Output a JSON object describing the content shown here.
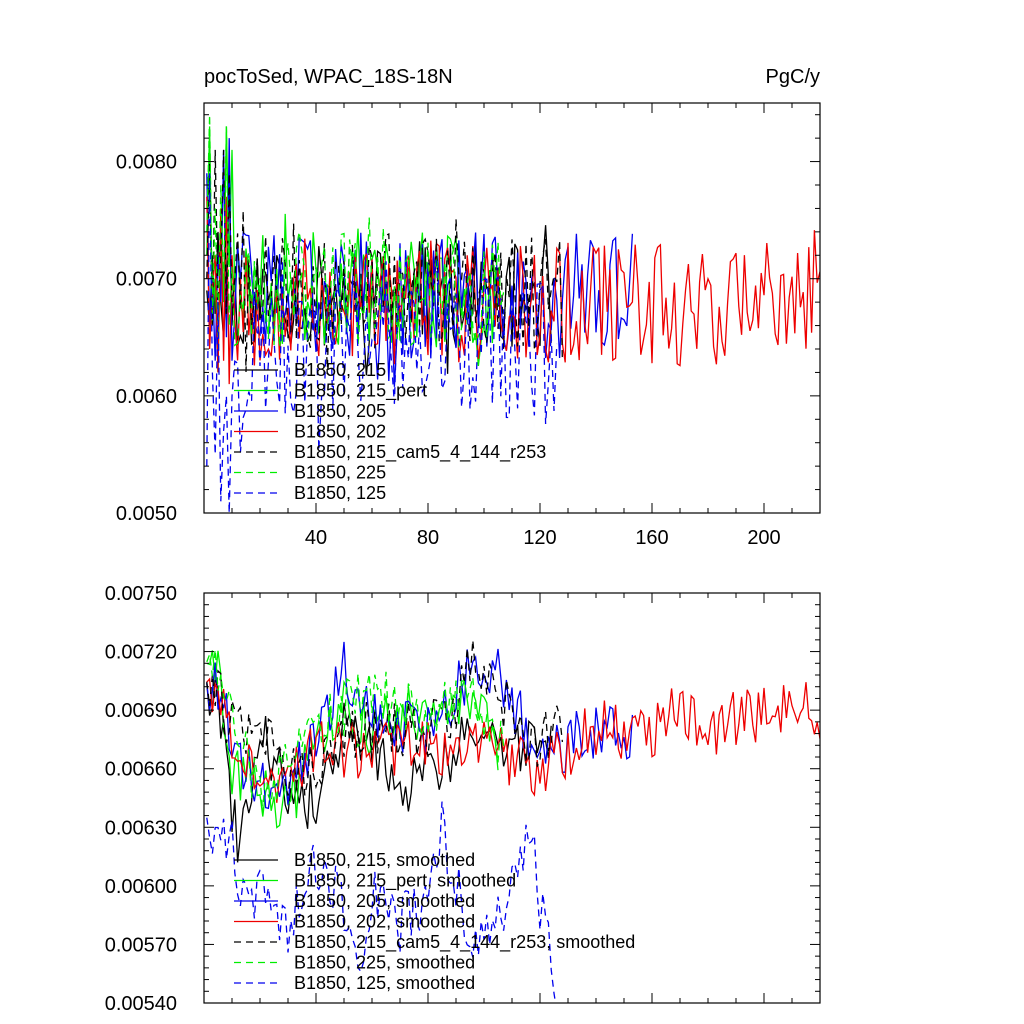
{
  "chart_data": [
    {
      "type": "line",
      "title_left": "pocToSed, WPAC_18S-18N",
      "title_right": "PgC/y",
      "xlabel": "",
      "ylabel": "",
      "xlim": [
        0,
        220
      ],
      "ylim": [
        0.005,
        0.0085
      ],
      "xticks": [
        40,
        80,
        120,
        160,
        200
      ],
      "yticks": [
        0.005,
        0.006,
        0.007,
        0.008
      ],
      "ytick_labels": [
        "0.0050",
        "0.0060",
        "0.0070",
        "0.0080"
      ],
      "legend_placement": "lower-left",
      "series": [
        {
          "name": "B1850, 215",
          "color": "#000000",
          "dash": "solid",
          "length": 124,
          "mean": 0.00685,
          "amp": 0.00045,
          "seed": 11,
          "values_sample": [
            0.0069,
            0.0066,
            0.0072,
            0.0067,
            0.0074,
            0.0068,
            0.0065,
            0.007,
            0.0078,
            0.0066
          ]
        },
        {
          "name": "B1850, 215_pert",
          "color": "#00ee00",
          "dash": "solid",
          "length": 105,
          "mean": 0.0069,
          "amp": 0.0005,
          "seed": 23,
          "values_sample": [
            0.0072,
            0.0083,
            0.0066,
            0.007,
            0.0062,
            0.0075,
            0.0068,
            0.0083,
            0.0071,
            0.0081
          ]
        },
        {
          "name": "B1850, 205",
          "color": "#0000ee",
          "dash": "solid",
          "length": 153,
          "mean": 0.00685,
          "amp": 0.00055,
          "seed": 37,
          "values_sample": [
            0.0079,
            0.0066,
            0.007,
            0.0063,
            0.0072,
            0.0068,
            0.0081,
            0.0065,
            0.0082,
            0.0063
          ]
        },
        {
          "name": "B1850, 202",
          "color": "#ee0000",
          "dash": "solid",
          "length": 220,
          "mean": 0.0068,
          "amp": 0.00055,
          "seed": 53,
          "values_sample": [
            0.0077,
            0.0064,
            0.0069,
            0.0072,
            0.0062,
            0.0076,
            0.0063,
            0.0077,
            0.0061,
            0.0072
          ]
        },
        {
          "name": "B1850, 215_cam5_4_144_r253",
          "color": "#000000",
          "dash": "dashed",
          "length": 128,
          "mean": 0.0069,
          "amp": 0.0005,
          "seed": 71,
          "values_sample": [
            0.007,
            0.008,
            0.0066,
            0.0081,
            0.0068,
            0.0072,
            0.0081,
            0.0067,
            0.0079,
            0.0068
          ]
        },
        {
          "name": "B1850, 225",
          "color": "#00ee00",
          "dash": "dashed",
          "length": 107,
          "mean": 0.0069,
          "amp": 0.0005,
          "seed": 89,
          "values_sample": [
            0.0074,
            0.0084,
            0.0067,
            0.0076,
            0.0065,
            0.0078,
            0.0069,
            0.0083,
            0.0066,
            0.0071
          ]
        },
        {
          "name": "B1850, 125",
          "color": "#0000ee",
          "dash": "dashed",
          "length": 126,
          "mean": 0.0064,
          "amp": 0.0006,
          "seed": 97,
          "values_sample": [
            0.0054,
            0.0079,
            0.0062,
            0.0055,
            0.0068,
            0.0051,
            0.0057,
            0.006,
            0.005,
            0.006
          ]
        }
      ]
    },
    {
      "type": "line",
      "title_left": "",
      "title_right": "",
      "xlabel": "",
      "ylabel": "",
      "xlim": [
        0,
        220
      ],
      "ylim": [
        0.0054,
        0.0075
      ],
      "xticks": [
        40,
        80,
        120,
        160,
        200
      ],
      "yticks": [
        0.0054,
        0.0057,
        0.006,
        0.0063,
        0.0066,
        0.0069,
        0.0072,
        0.0075
      ],
      "ytick_labels": [
        "0.00540",
        "0.00570",
        "0.00600",
        "0.00630",
        "0.00660",
        "0.00690",
        "0.00720",
        "0.00750"
      ],
      "legend_placement": "lower-left",
      "series": [
        {
          "name": "B1850, 215, smoothed",
          "color": "#000000",
          "dash": "solid",
          "length": 124,
          "points": [
            [
              5,
              0.007
            ],
            [
              10,
              0.0064
            ],
            [
              12,
              0.0062
            ],
            [
              20,
              0.0068
            ],
            [
              30,
              0.0065
            ],
            [
              40,
              0.0064
            ],
            [
              50,
              0.0068
            ],
            [
              60,
              0.0067
            ],
            [
              70,
              0.0065
            ],
            [
              80,
              0.0066
            ],
            [
              90,
              0.0067
            ],
            [
              100,
              0.0068
            ],
            [
              110,
              0.0067
            ],
            [
              124,
              0.0068
            ]
          ]
        },
        {
          "name": "B1850, 215_pert, smoothed",
          "color": "#00ee00",
          "dash": "solid",
          "length": 105,
          "points": [
            [
              5,
              0.0071
            ],
            [
              10,
              0.0066
            ],
            [
              20,
              0.0065
            ],
            [
              30,
              0.0064
            ],
            [
              40,
              0.0067
            ],
            [
              50,
              0.0069
            ],
            [
              60,
              0.0068
            ],
            [
              70,
              0.0069
            ],
            [
              80,
              0.0068
            ],
            [
              90,
              0.0069
            ],
            [
              95,
              0.007
            ],
            [
              105,
              0.0067
            ]
          ]
        },
        {
          "name": "B1850, 205, smoothed",
          "color": "#0000ee",
          "dash": "solid",
          "length": 153,
          "points": [
            [
              5,
              0.007
            ],
            [
              10,
              0.0068
            ],
            [
              15,
              0.0066
            ],
            [
              25,
              0.0065
            ],
            [
              35,
              0.0066
            ],
            [
              45,
              0.0069
            ],
            [
              50,
              0.0071
            ],
            [
              60,
              0.0069
            ],
            [
              70,
              0.0068
            ],
            [
              80,
              0.0068
            ],
            [
              95,
              0.0071
            ],
            [
              105,
              0.0071
            ],
            [
              115,
              0.0068
            ],
            [
              125,
              0.0067
            ],
            [
              140,
              0.0068
            ],
            [
              153,
              0.0068
            ]
          ]
        },
        {
          "name": "B1850, 202, smoothed",
          "color": "#ee0000",
          "dash": "solid",
          "length": 220,
          "points": [
            [
              5,
              0.007
            ],
            [
              10,
              0.0068
            ],
            [
              20,
              0.0065
            ],
            [
              30,
              0.0066
            ],
            [
              40,
              0.0067
            ],
            [
              60,
              0.0067
            ],
            [
              80,
              0.0067
            ],
            [
              100,
              0.0067
            ],
            [
              120,
              0.0066
            ],
            [
              140,
              0.0068
            ],
            [
              160,
              0.0068
            ],
            [
              170,
              0.0069
            ],
            [
              180,
              0.0068
            ],
            [
              200,
              0.0069
            ],
            [
              215,
              0.0069
            ],
            [
              220,
              0.0069
            ]
          ]
        },
        {
          "name": "B1850, 215_cam5_4_144_r253, smoothed",
          "color": "#000000",
          "dash": "dashed",
          "length": 128,
          "points": [
            [
              5,
              0.007
            ],
            [
              10,
              0.0068
            ],
            [
              20,
              0.0068
            ],
            [
              30,
              0.0066
            ],
            [
              40,
              0.0066
            ],
            [
              50,
              0.0068
            ],
            [
              60,
              0.0068
            ],
            [
              70,
              0.0068
            ],
            [
              80,
              0.0068
            ],
            [
              90,
              0.0069
            ],
            [
              97,
              0.0072
            ],
            [
              105,
              0.007
            ],
            [
              115,
              0.0067
            ],
            [
              128,
              0.0068
            ]
          ]
        },
        {
          "name": "B1850, 225, smoothed",
          "color": "#00ee00",
          "dash": "dashed",
          "length": 107,
          "points": [
            [
              5,
              0.0071
            ],
            [
              10,
              0.0068
            ],
            [
              20,
              0.0065
            ],
            [
              30,
              0.0066
            ],
            [
              40,
              0.0068
            ],
            [
              50,
              0.0069
            ],
            [
              60,
              0.007
            ],
            [
              70,
              0.0069
            ],
            [
              80,
              0.0069
            ],
            [
              90,
              0.007
            ],
            [
              100,
              0.0069
            ],
            [
              107,
              0.0067
            ]
          ]
        },
        {
          "name": "B1850, 125, smoothed",
          "color": "#0000ee",
          "dash": "dashed",
          "length": 126,
          "points": [
            [
              5,
              0.0063
            ],
            [
              10,
              0.0062
            ],
            [
              15,
              0.0059
            ],
            [
              20,
              0.006
            ],
            [
              30,
              0.0058
            ],
            [
              40,
              0.0061
            ],
            [
              50,
              0.0059
            ],
            [
              55,
              0.0056
            ],
            [
              60,
              0.006
            ],
            [
              70,
              0.0058
            ],
            [
              78,
              0.0059
            ],
            [
              85,
              0.0063
            ],
            [
              90,
              0.006
            ],
            [
              95,
              0.0058
            ],
            [
              100,
              0.0057
            ],
            [
              110,
              0.006
            ],
            [
              118,
              0.0063
            ],
            [
              120,
              0.0059
            ],
            [
              126,
              0.0055
            ]
          ]
        }
      ]
    }
  ]
}
